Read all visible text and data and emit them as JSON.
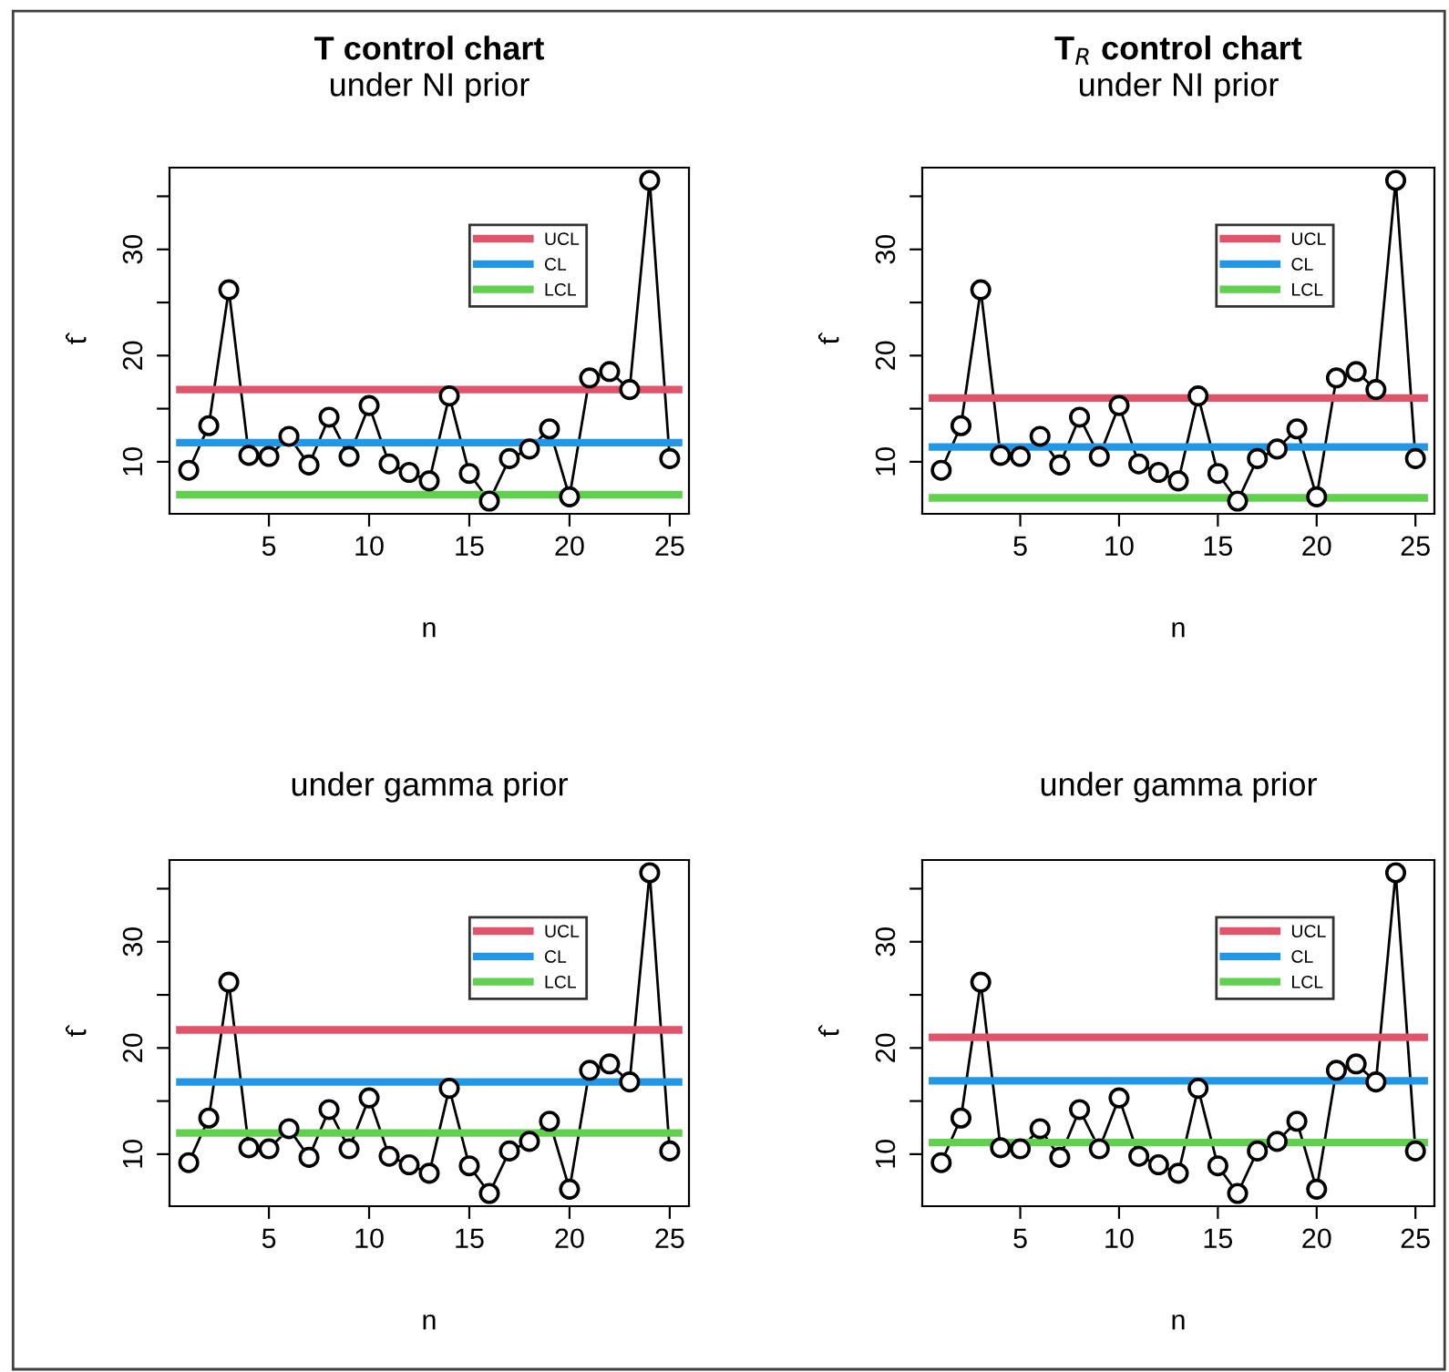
{
  "chart_data": [
    {
      "type": "line",
      "title": "T control chart",
      "subtitle": "under NI prior",
      "xlabel": "n",
      "ylabel": "t̂",
      "x": [
        1,
        2,
        3,
        4,
        5,
        6,
        7,
        8,
        9,
        10,
        11,
        12,
        13,
        14,
        15,
        16,
        17,
        18,
        19,
        20,
        21,
        22,
        23,
        24,
        25
      ],
      "series": [
        {
          "color": "#000000",
          "values": [
            9.2,
            13.4,
            26.2,
            10.6,
            10.5,
            12.4,
            9.7,
            14.2,
            10.5,
            15.3,
            9.8,
            9.0,
            8.2,
            16.2,
            8.9,
            6.3,
            10.3,
            11.2,
            13.1,
            6.7,
            17.9,
            18.5,
            16.8,
            36.5,
            10.3
          ]
        }
      ],
      "ref_lines": [
        {
          "axis": "y",
          "value": 16.8,
          "label": "UCL",
          "color": "#df536b"
        },
        {
          "axis": "y",
          "value": 11.8,
          "label": "CL",
          "color": "#2297e6"
        },
        {
          "axis": "y",
          "value": 6.9,
          "label": "LCL",
          "color": "#61d04f"
        }
      ],
      "xlim": [
        0.04,
        25.96
      ],
      "ylim": [
        5.1,
        37.7
      ],
      "xticks": [
        5,
        10,
        15,
        20,
        25
      ],
      "yticks": [
        10,
        {
          "value": 15,
          "label": null
        },
        20,
        {
          "value": 25,
          "label": null
        },
        30,
        {
          "value": 35,
          "label": null
        }
      ],
      "marker": "circle",
      "line_style": "solid",
      "legend": "top right",
      "grid": false
    },
    {
      "type": "line",
      "title": "T$_{R}$ control chart",
      "subtitle": "under NI prior",
      "xlabel": "n",
      "ylabel": "t̂",
      "x": [
        1,
        2,
        3,
        4,
        5,
        6,
        7,
        8,
        9,
        10,
        11,
        12,
        13,
        14,
        15,
        16,
        17,
        18,
        19,
        20,
        21,
        22,
        23,
        24,
        25
      ],
      "series": [
        {
          "color": "#000000",
          "values": [
            9.2,
            13.4,
            26.2,
            10.6,
            10.5,
            12.4,
            9.7,
            14.2,
            10.5,
            15.3,
            9.8,
            9.0,
            8.2,
            16.2,
            8.9,
            6.3,
            10.3,
            11.2,
            13.1,
            6.7,
            17.9,
            18.5,
            16.8,
            36.5,
            10.3
          ]
        }
      ],
      "ref_lines": [
        {
          "axis": "y",
          "value": 16.0,
          "label": "UCL",
          "color": "#df536b"
        },
        {
          "axis": "y",
          "value": 11.4,
          "label": "CL",
          "color": "#2297e6"
        },
        {
          "axis": "y",
          "value": 6.6,
          "label": "LCL",
          "color": "#61d04f"
        }
      ],
      "xlim": [
        0.04,
        25.96
      ],
      "ylim": [
        5.1,
        37.7
      ],
      "xticks": [
        5,
        10,
        15,
        20,
        25
      ],
      "yticks": [
        10,
        {
          "value": 15,
          "label": null
        },
        20,
        {
          "value": 25,
          "label": null
        },
        30,
        {
          "value": 35,
          "label": null
        }
      ],
      "marker": "circle",
      "line_style": "solid",
      "legend": "top right",
      "grid": false
    },
    {
      "type": "line",
      "subtitle": "under gamma prior",
      "xlabel": "n",
      "ylabel": "t̂",
      "x": [
        1,
        2,
        3,
        4,
        5,
        6,
        7,
        8,
        9,
        10,
        11,
        12,
        13,
        14,
        15,
        16,
        17,
        18,
        19,
        20,
        21,
        22,
        23,
        24,
        25
      ],
      "series": [
        {
          "color": "#000000",
          "values": [
            9.2,
            13.4,
            26.2,
            10.6,
            10.5,
            12.4,
            9.7,
            14.2,
            10.5,
            15.3,
            9.8,
            9.0,
            8.2,
            16.2,
            8.9,
            6.3,
            10.3,
            11.2,
            13.1,
            6.7,
            17.9,
            18.5,
            16.8,
            36.5,
            10.3
          ]
        }
      ],
      "ref_lines": [
        {
          "axis": "y",
          "value": 21.7,
          "label": "UCL",
          "color": "#df536b"
        },
        {
          "axis": "y",
          "value": 16.8,
          "label": "CL",
          "color": "#2297e6"
        },
        {
          "axis": "y",
          "value": 12.0,
          "label": "LCL",
          "color": "#61d04f"
        }
      ],
      "xlim": [
        0.04,
        25.96
      ],
      "ylim": [
        5.1,
        37.7
      ],
      "xticks": [
        5,
        10,
        15,
        20,
        25
      ],
      "yticks": [
        10,
        {
          "value": 15,
          "label": null
        },
        20,
        {
          "value": 25,
          "label": null
        },
        30,
        {
          "value": 35,
          "label": null
        }
      ],
      "marker": "circle",
      "line_style": "solid",
      "legend": "top right",
      "grid": false
    },
    {
      "type": "line",
      "subtitle": "under gamma prior",
      "xlabel": "n",
      "ylabel": "t̂",
      "x": [
        1,
        2,
        3,
        4,
        5,
        6,
        7,
        8,
        9,
        10,
        11,
        12,
        13,
        14,
        15,
        16,
        17,
        18,
        19,
        20,
        21,
        22,
        23,
        24,
        25
      ],
      "series": [
        {
          "color": "#000000",
          "values": [
            9.2,
            13.4,
            26.2,
            10.6,
            10.5,
            12.4,
            9.7,
            14.2,
            10.5,
            15.3,
            9.8,
            9.0,
            8.2,
            16.2,
            8.9,
            6.3,
            10.3,
            11.2,
            13.1,
            6.7,
            17.9,
            18.5,
            16.8,
            36.5,
            10.3
          ]
        }
      ],
      "ref_lines": [
        {
          "axis": "y",
          "value": 21.0,
          "label": "UCL",
          "color": "#df536b"
        },
        {
          "axis": "y",
          "value": 16.9,
          "label": "CL",
          "color": "#2297e6"
        },
        {
          "axis": "y",
          "value": 11.1,
          "label": "LCL",
          "color": "#61d04f"
        }
      ],
      "xlim": [
        0.04,
        25.96
      ],
      "ylim": [
        5.1,
        37.7
      ],
      "xticks": [
        5,
        10,
        15,
        20,
        25
      ],
      "yticks": [
        10,
        {
          "value": 15,
          "label": null
        },
        20,
        {
          "value": 25,
          "label": null
        },
        30,
        {
          "value": 35,
          "label": null
        }
      ],
      "marker": "circle",
      "line_style": "solid",
      "legend": "top right",
      "grid": false
    }
  ]
}
